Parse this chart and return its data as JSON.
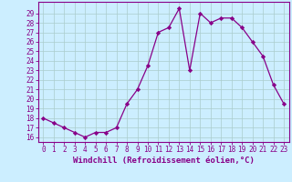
{
  "x": [
    0,
    1,
    2,
    3,
    4,
    5,
    6,
    7,
    8,
    9,
    10,
    11,
    12,
    13,
    14,
    15,
    16,
    17,
    18,
    19,
    20,
    21,
    22,
    23
  ],
  "y": [
    18,
    17.5,
    17,
    16.5,
    16,
    16.5,
    16.5,
    17,
    19.5,
    21,
    23.5,
    27,
    27.5,
    29.5,
    23,
    29,
    28,
    28.5,
    28.5,
    27.5,
    26,
    24.5,
    21.5,
    19.5
  ],
  "line_color": "#880088",
  "marker": "D",
  "markersize": 2.2,
  "linewidth": 0.9,
  "bg_color": "#cceeff",
  "grid_color": "#aacccc",
  "xlabel": "Windchill (Refroidissement éolien,°C)",
  "xlabel_fontsize": 6.5,
  "ylabel_ticks": [
    16,
    17,
    18,
    19,
    20,
    21,
    22,
    23,
    24,
    25,
    26,
    27,
    28,
    29
  ],
  "ylim": [
    15.5,
    30.2
  ],
  "xlim": [
    -0.5,
    23.5
  ],
  "xticks": [
    0,
    1,
    2,
    3,
    4,
    5,
    6,
    7,
    8,
    9,
    10,
    11,
    12,
    13,
    14,
    15,
    16,
    17,
    18,
    19,
    20,
    21,
    22,
    23
  ],
  "tick_fontsize": 5.5,
  "tick_color": "#880088",
  "axis_label_color": "#880088",
  "spine_color": "#880088"
}
